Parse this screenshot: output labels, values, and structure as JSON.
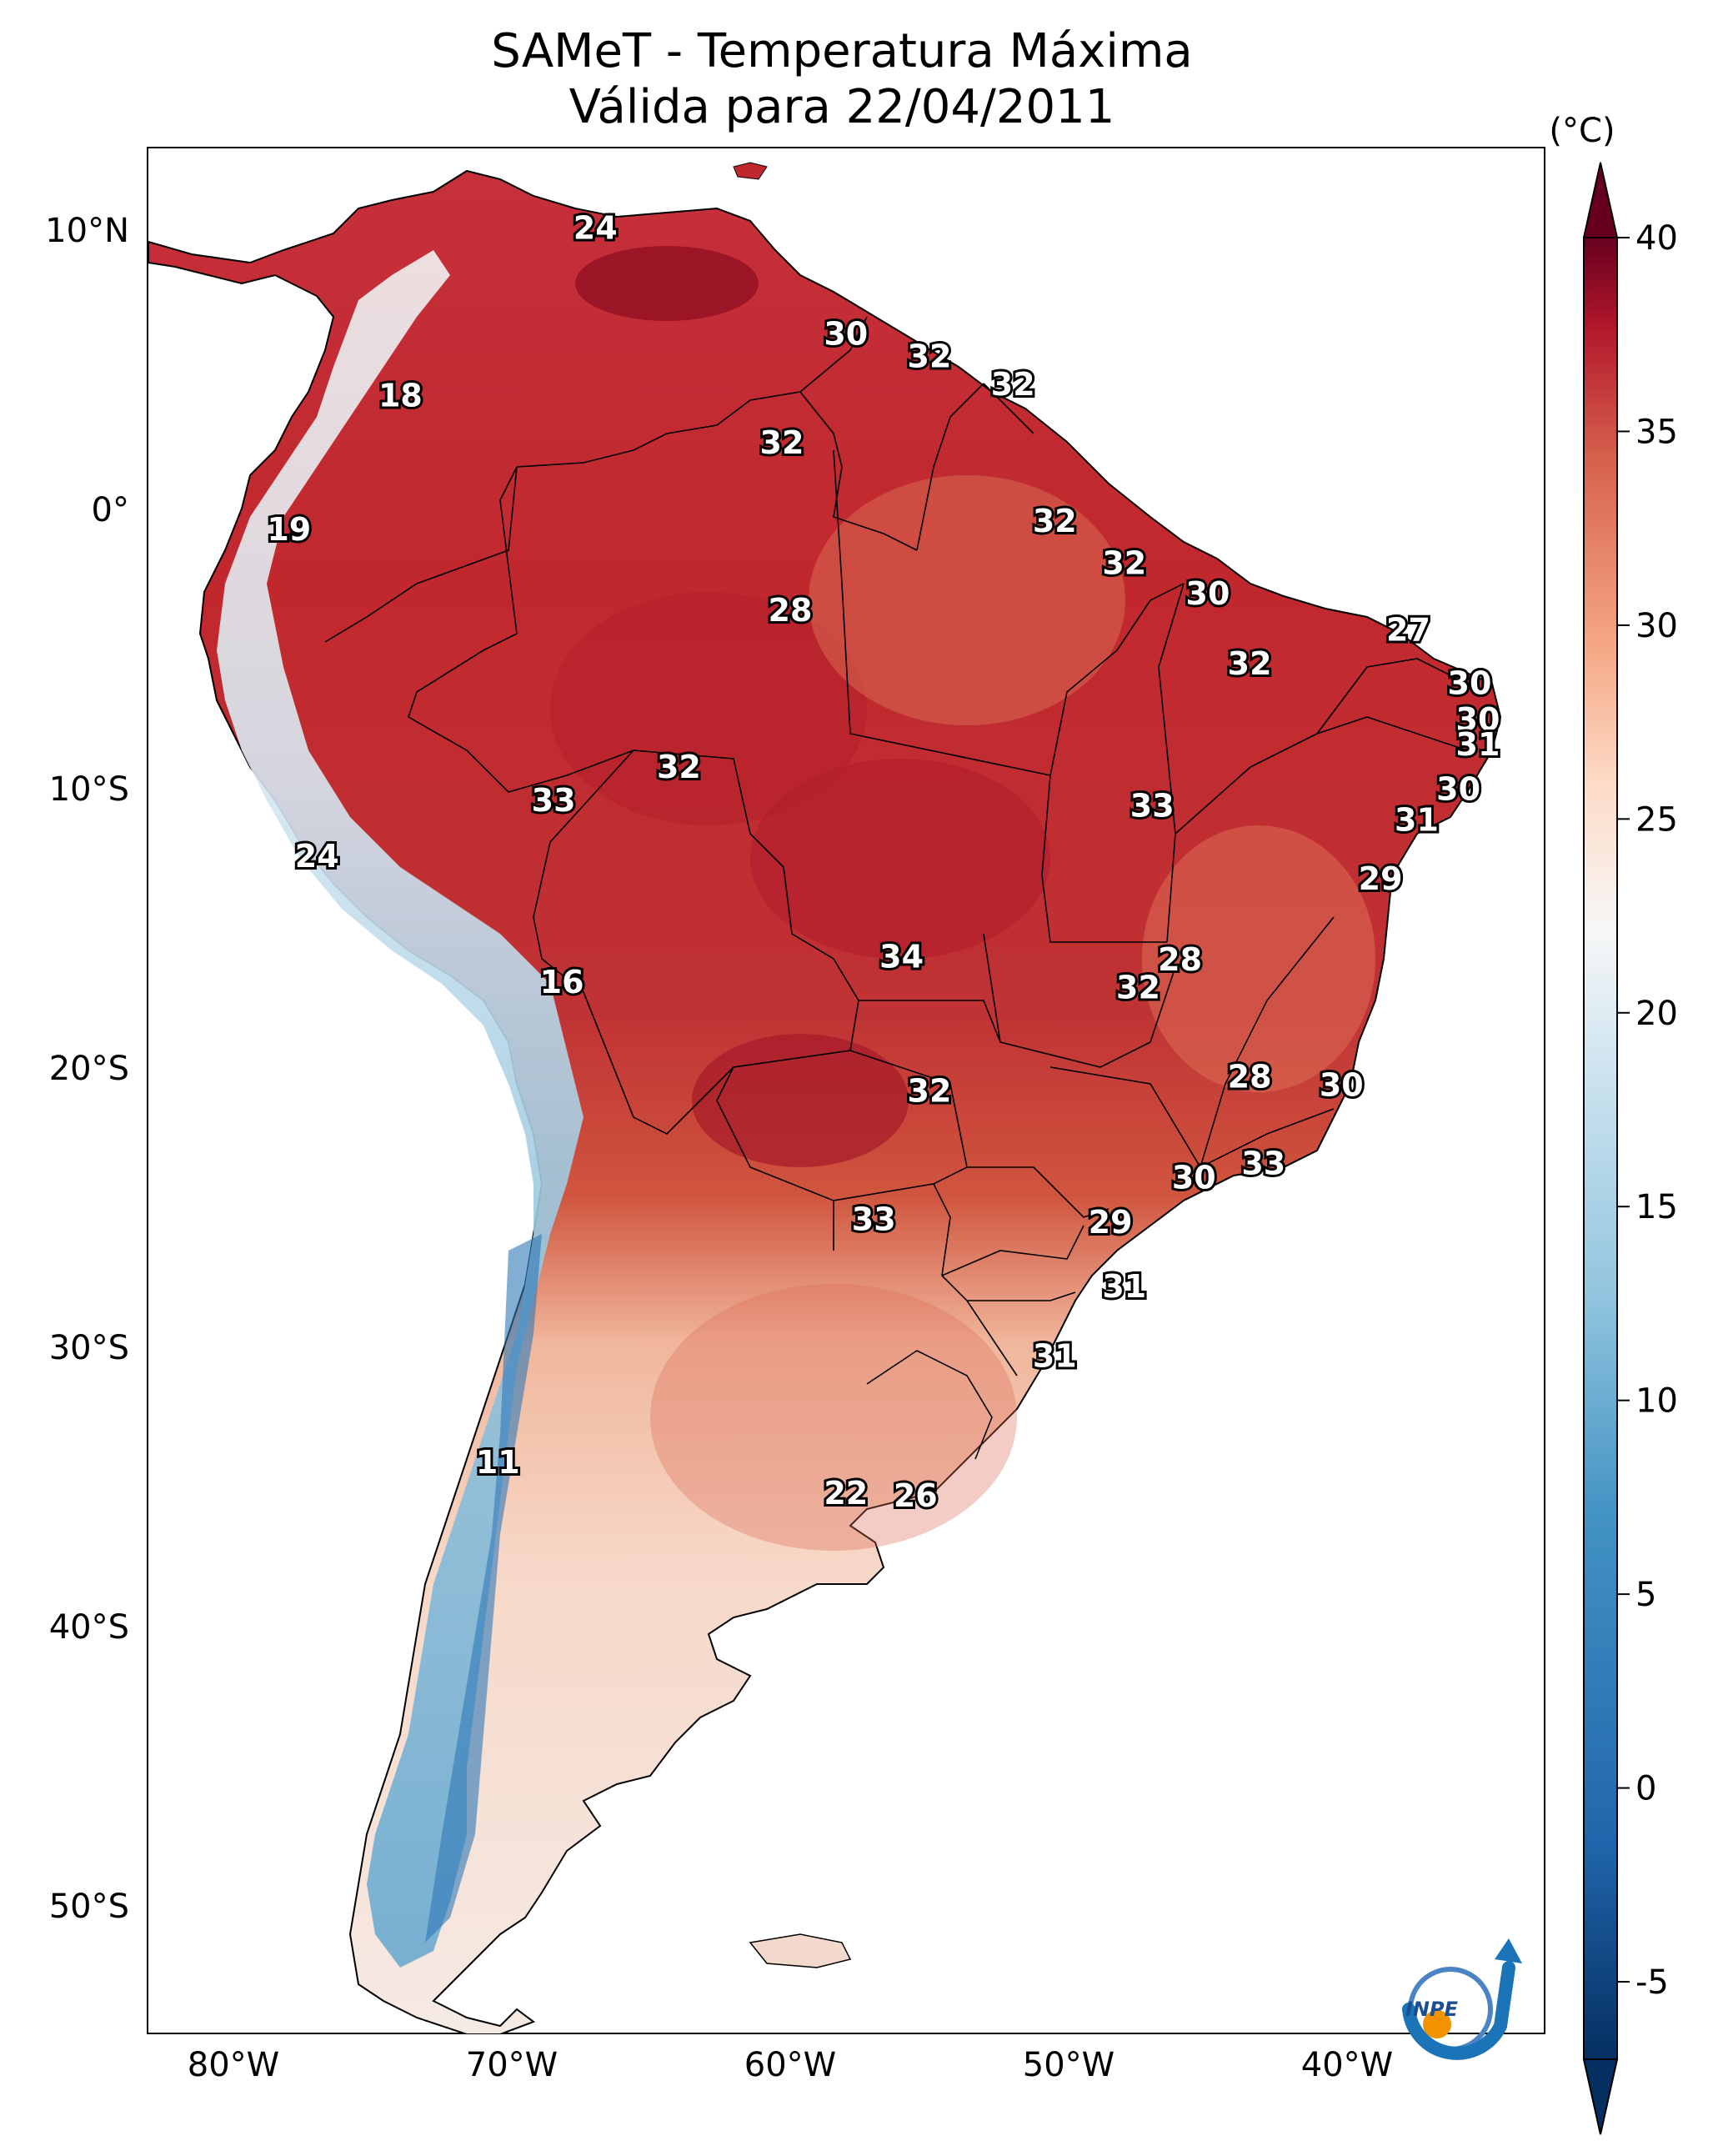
{
  "title": {
    "line1": "SAMeT - Temperatura Máxima",
    "line2": "Válida para 22/04/2011"
  },
  "colors": {
    "warm_dark": "#67001f",
    "warm": "#c1282e",
    "warm_light": "#f4a582",
    "neutral": "#f7f7f7",
    "cool_light": "#92c5de",
    "cool": "#2166ac",
    "cool_dark": "#053061"
  },
  "map": {
    "lon_labels": [
      "80°W",
      "70°W",
      "60°W",
      "50°W",
      "40°W"
    ],
    "lat_labels": [
      "10°N",
      "0°",
      "10°S",
      "20°S",
      "30°S",
      "40°S",
      "50°S"
    ],
    "temperature_labels": [
      {
        "lon": -67.0,
        "lat": 10.5,
        "value": "24"
      },
      {
        "lon": -74.0,
        "lat": 4.5,
        "value": "18"
      },
      {
        "lon": -58.0,
        "lat": 6.7,
        "value": "30"
      },
      {
        "lon": -55.0,
        "lat": 5.9,
        "value": "32"
      },
      {
        "lon": -52.0,
        "lat": 4.9,
        "value": "32"
      },
      {
        "lon": -60.3,
        "lat": 2.8,
        "value": "32"
      },
      {
        "lon": -50.5,
        "lat": 0.0,
        "value": "32"
      },
      {
        "lon": -78.0,
        "lat": -0.3,
        "value": "19"
      },
      {
        "lon": -48.0,
        "lat": -1.5,
        "value": "32"
      },
      {
        "lon": -60.0,
        "lat": -3.2,
        "value": "28"
      },
      {
        "lon": -45.0,
        "lat": -2.6,
        "value": "30"
      },
      {
        "lon": -37.8,
        "lat": -3.9,
        "value": "27"
      },
      {
        "lon": -43.5,
        "lat": -5.1,
        "value": "32"
      },
      {
        "lon": -35.6,
        "lat": -5.8,
        "value": "30"
      },
      {
        "lon": -35.3,
        "lat": -7.1,
        "value": "30"
      },
      {
        "lon": -35.3,
        "lat": -8.0,
        "value": "31"
      },
      {
        "lon": -64.0,
        "lat": -8.8,
        "value": "32"
      },
      {
        "lon": -68.5,
        "lat": -10.0,
        "value": "33"
      },
      {
        "lon": -47.0,
        "lat": -10.2,
        "value": "33"
      },
      {
        "lon": -36.0,
        "lat": -9.6,
        "value": "30"
      },
      {
        "lon": -37.5,
        "lat": -10.7,
        "value": "31"
      },
      {
        "lon": -77.0,
        "lat": -12.0,
        "value": "24"
      },
      {
        "lon": -38.8,
        "lat": -12.8,
        "value": "29"
      },
      {
        "lon": -56.0,
        "lat": -15.6,
        "value": "34"
      },
      {
        "lon": -46.0,
        "lat": -15.7,
        "value": "28"
      },
      {
        "lon": -47.5,
        "lat": -16.7,
        "value": "32"
      },
      {
        "lon": -68.2,
        "lat": -16.5,
        "value": "16"
      },
      {
        "lon": -43.5,
        "lat": -19.9,
        "value": "28"
      },
      {
        "lon": -55.0,
        "lat": -20.4,
        "value": "32"
      },
      {
        "lon": -40.2,
        "lat": -20.2,
        "value": "30"
      },
      {
        "lon": -43.0,
        "lat": -23.0,
        "value": "33"
      },
      {
        "lon": -45.5,
        "lat": -23.5,
        "value": "30"
      },
      {
        "lon": -57.0,
        "lat": -25.0,
        "value": "33"
      },
      {
        "lon": -48.5,
        "lat": -25.1,
        "value": "29"
      },
      {
        "lon": -48.0,
        "lat": -27.4,
        "value": "31"
      },
      {
        "lon": -50.5,
        "lat": -29.9,
        "value": "31"
      },
      {
        "lon": -70.5,
        "lat": -33.7,
        "value": "11"
      },
      {
        "lon": -58.0,
        "lat": -34.8,
        "value": "22"
      },
      {
        "lon": -55.5,
        "lat": -34.9,
        "value": "26"
      }
    ]
  },
  "colorbar": {
    "unit": "(°C)",
    "range": [
      -7,
      40
    ],
    "ticks": [
      "-5",
      "0",
      "5",
      "10",
      "15",
      "20",
      "25",
      "30",
      "35",
      "40"
    ]
  },
  "logo": {
    "text": "INPE"
  }
}
